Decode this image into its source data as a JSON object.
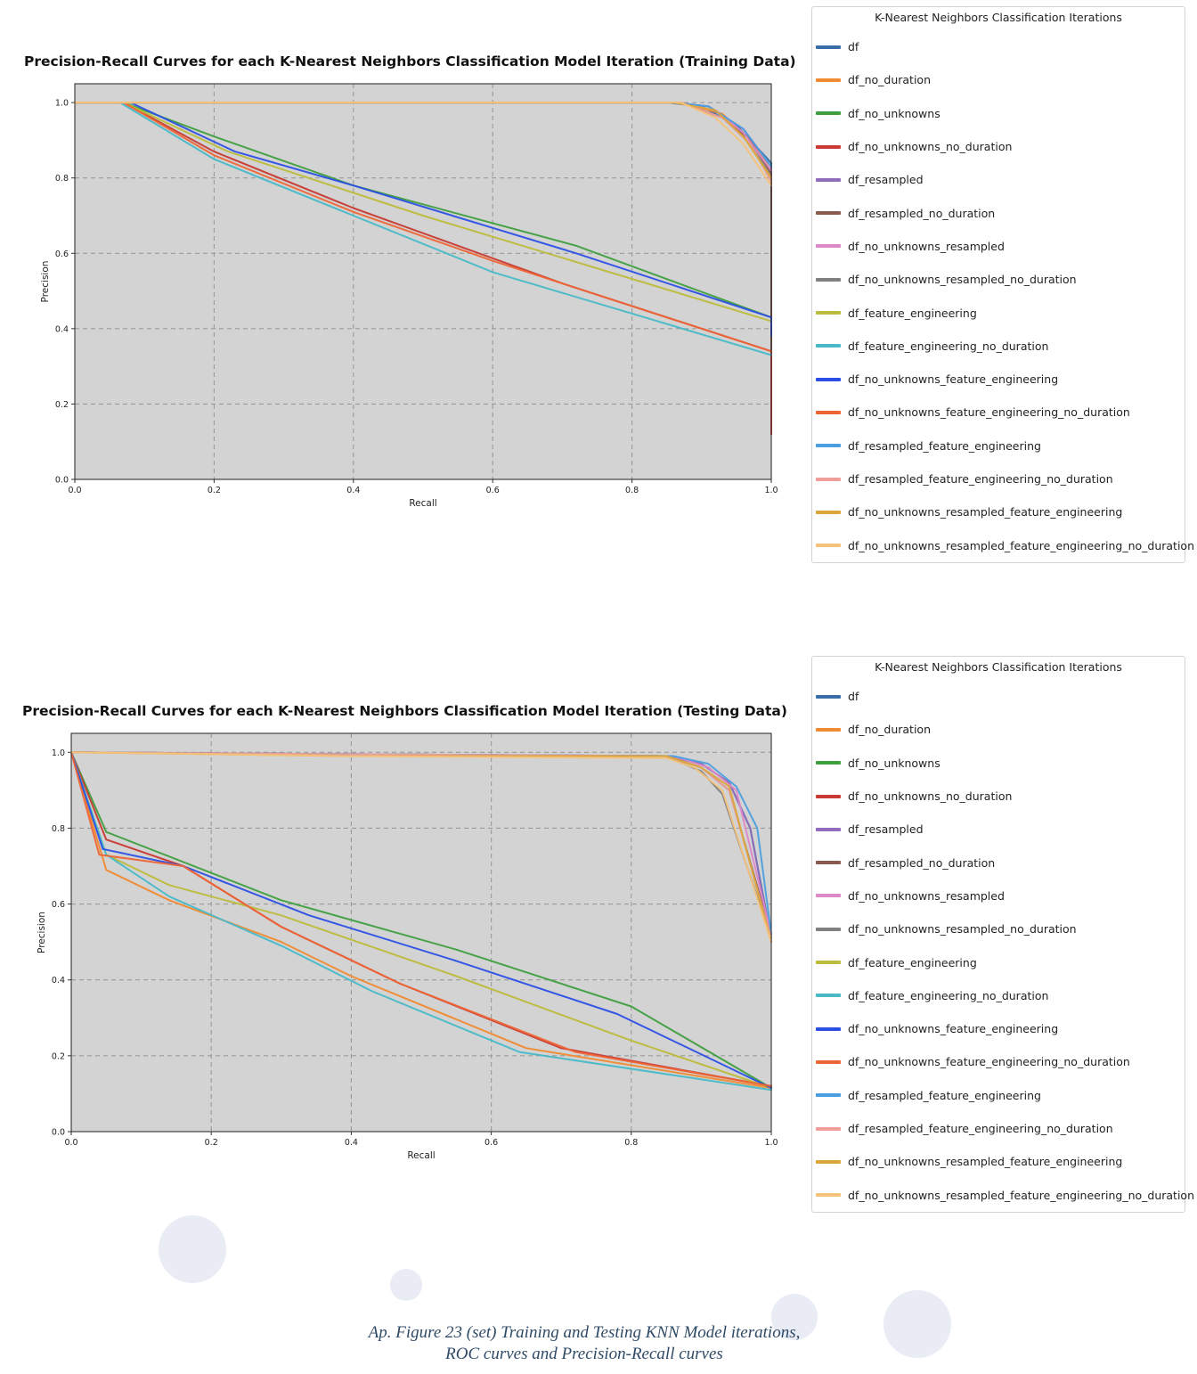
{
  "caption": {
    "line1": "Ap. Figure 23 (set) Training and Testing KNN Model iterations,",
    "line2": "ROC curves and Precision-Recall curves"
  },
  "legend_title": "K-Nearest Neighbors Classification Iterations",
  "series_styles": [
    {
      "name": "df",
      "color": "#3a6ea8"
    },
    {
      "name": "df_no_duration",
      "color": "#f08a30"
    },
    {
      "name": "df_no_unknowns",
      "color": "#3f9f3f"
    },
    {
      "name": "df_no_unknowns_no_duration",
      "color": "#c83a32"
    },
    {
      "name": "df_resampled",
      "color": "#8f6cbc"
    },
    {
      "name": "df_resampled_no_duration",
      "color": "#8a5a4e"
    },
    {
      "name": "df_no_unknowns_resampled",
      "color": "#dd88c7"
    },
    {
      "name": "df_no_unknowns_resampled_no_duration",
      "color": "#808080"
    },
    {
      "name": "df_feature_engineering",
      "color": "#bcbc3c"
    },
    {
      "name": "df_feature_engineering_no_duration",
      "color": "#48b9c8"
    },
    {
      "name": "df_no_unknowns_feature_engineering",
      "color": "#2b4fe6"
    },
    {
      "name": "df_no_unknowns_feature_engineering_no_duration",
      "color": "#ee6535"
    },
    {
      "name": "df_resampled_feature_engineering",
      "color": "#4b9fe0"
    },
    {
      "name": "df_resampled_feature_engineering_no_duration",
      "color": "#ef9e9a"
    },
    {
      "name": "df_no_unknowns_resampled_feature_engineering",
      "color": "#daa63a"
    },
    {
      "name": "df_no_unknowns_resampled_feature_engineering_no_duration",
      "color": "#f5c27a"
    }
  ],
  "chart_data": [
    {
      "type": "line",
      "title": "Precision-Recall Curves for each K-Nearest Neighbors Classification Model Iteration (Training Data)",
      "xlabel": "Recall",
      "ylabel": "Precision",
      "xlim": [
        0,
        1
      ],
      "ylim": [
        0,
        1.05
      ],
      "xticks": [
        "0.0",
        "0.2",
        "0.4",
        "0.6",
        "0.8",
        "1.0"
      ],
      "yticks": [
        "0.0",
        "0.2",
        "0.4",
        "0.6",
        "0.8",
        "1.0"
      ],
      "grid": true,
      "legend_position": "outside-right",
      "series": [
        {
          "name": "df",
          "points": [
            [
              0,
              1
            ],
            [
              0.85,
              1
            ],
            [
              0.9,
              0.99
            ],
            [
              0.95,
              0.94
            ],
            [
              0.98,
              0.88
            ],
            [
              1,
              0.84
            ],
            [
              1,
              0.43
            ]
          ]
        },
        {
          "name": "df_no_duration",
          "points": [
            [
              0,
              1
            ],
            [
              0.87,
              1
            ],
            [
              0.93,
              0.97
            ],
            [
              0.97,
              0.9
            ],
            [
              1,
              0.82
            ],
            [
              1,
              0.34
            ]
          ]
        },
        {
          "name": "df_no_unknowns",
          "points": [
            [
              0,
              1
            ],
            [
              0.07,
              1
            ],
            [
              0.2,
              0.91
            ],
            [
              0.4,
              0.78
            ],
            [
              0.72,
              0.62
            ],
            [
              1,
              0.43
            ]
          ]
        },
        {
          "name": "df_no_unknowns_no_duration",
          "points": [
            [
              0,
              1
            ],
            [
              0.07,
              1
            ],
            [
              0.2,
              0.87
            ],
            [
              0.4,
              0.72
            ],
            [
              0.7,
              0.52
            ],
            [
              1,
              0.34
            ],
            [
              1,
              0.12
            ]
          ]
        },
        {
          "name": "df_resampled",
          "points": [
            [
              0,
              1
            ],
            [
              0.86,
              1
            ],
            [
              0.91,
              0.99
            ],
            [
              0.96,
              0.93
            ],
            [
              1,
              0.83
            ],
            [
              1,
              0.43
            ]
          ]
        },
        {
          "name": "df_resampled_no_duration",
          "points": [
            [
              0,
              1
            ],
            [
              0.87,
              1
            ],
            [
              0.93,
              0.96
            ],
            [
              0.97,
              0.9
            ],
            [
              1,
              0.81
            ],
            [
              1,
              0.34
            ]
          ]
        },
        {
          "name": "df_no_unknowns_resampled",
          "points": [
            [
              0,
              1
            ],
            [
              0.86,
              1
            ],
            [
              0.92,
              0.98
            ],
            [
              0.96,
              0.92
            ],
            [
              1,
              0.82
            ]
          ]
        },
        {
          "name": "df_no_unknowns_resampled_no_duration",
          "points": [
            [
              0,
              1
            ],
            [
              0.87,
              1
            ],
            [
              0.93,
              0.96
            ],
            [
              0.97,
              0.89
            ],
            [
              1,
              0.8
            ]
          ]
        },
        {
          "name": "df_feature_engineering",
          "points": [
            [
              0,
              1
            ],
            [
              0.07,
              1
            ],
            [
              0.22,
              0.87
            ],
            [
              0.5,
              0.7
            ],
            [
              1,
              0.42
            ]
          ]
        },
        {
          "name": "df_feature_engineering_no_duration",
          "points": [
            [
              0,
              1
            ],
            [
              0.065,
              1
            ],
            [
              0.2,
              0.85
            ],
            [
              0.4,
              0.7
            ],
            [
              0.6,
              0.55
            ],
            [
              1,
              0.33
            ]
          ]
        },
        {
          "name": "df_no_unknowns_feature_engineering",
          "points": [
            [
              0,
              1
            ],
            [
              0.08,
              1
            ],
            [
              0.23,
              0.87
            ],
            [
              0.4,
              0.78
            ],
            [
              0.72,
              0.6
            ],
            [
              1,
              0.43
            ],
            [
              1,
              0.38
            ]
          ]
        },
        {
          "name": "df_no_unknowns_feature_engineering_no_duration",
          "points": [
            [
              0,
              1
            ],
            [
              0.07,
              1
            ],
            [
              0.2,
              0.86
            ],
            [
              0.4,
              0.71
            ],
            [
              0.6,
              0.58
            ],
            [
              1,
              0.34
            ]
          ]
        },
        {
          "name": "df_resampled_feature_engineering",
          "points": [
            [
              0,
              1
            ],
            [
              0.86,
              1
            ],
            [
              0.91,
              0.99
            ],
            [
              0.96,
              0.93
            ],
            [
              1,
              0.83
            ]
          ]
        },
        {
          "name": "df_resampled_feature_engineering_no_duration",
          "points": [
            [
              0,
              1
            ],
            [
              0.87,
              1
            ],
            [
              0.93,
              0.96
            ],
            [
              0.97,
              0.89
            ],
            [
              1,
              0.79
            ]
          ]
        },
        {
          "name": "df_no_unknowns_resampled_feature_engineering",
          "points": [
            [
              0,
              1
            ],
            [
              0.86,
              1
            ],
            [
              0.92,
              0.98
            ],
            [
              0.96,
              0.91
            ],
            [
              1,
              0.8
            ]
          ]
        },
        {
          "name": "df_no_unknowns_resampled_feature_engineering_no_duration",
          "points": [
            [
              0,
              1
            ],
            [
              0.87,
              1
            ],
            [
              0.92,
              0.96
            ],
            [
              0.96,
              0.89
            ],
            [
              1,
              0.78
            ]
          ]
        }
      ]
    },
    {
      "type": "line",
      "title": "Precision-Recall Curves for each K-Nearest Neighbors Classification Model Iteration (Testing Data)",
      "xlabel": "Recall",
      "ylabel": "Precision",
      "xlim": [
        0,
        1
      ],
      "ylim": [
        0,
        1.05
      ],
      "xticks": [
        "0.0",
        "0.2",
        "0.4",
        "0.6",
        "0.8",
        "1.0"
      ],
      "yticks": [
        "0.0",
        "0.2",
        "0.4",
        "0.6",
        "0.8",
        "1.0"
      ],
      "grid": true,
      "legend_position": "outside-right",
      "series": [
        {
          "name": "df",
          "points": [
            [
              0,
              1
            ],
            [
              0.4,
              0.995
            ],
            [
              0.85,
              0.99
            ],
            [
              0.9,
              0.97
            ],
            [
              0.94,
              0.92
            ],
            [
              0.97,
              0.8
            ],
            [
              1,
              0.51
            ]
          ]
        },
        {
          "name": "df_no_duration",
          "points": [
            [
              0,
              1
            ],
            [
              0.05,
              0.69
            ],
            [
              0.14,
              0.61
            ],
            [
              0.3,
              0.5
            ],
            [
              0.4,
              0.41
            ],
            [
              0.65,
              0.22
            ],
            [
              1,
              0.115
            ]
          ]
        },
        {
          "name": "df_no_unknowns",
          "points": [
            [
              0,
              1
            ],
            [
              0.05,
              0.79
            ],
            [
              0.3,
              0.61
            ],
            [
              0.55,
              0.48
            ],
            [
              0.8,
              0.33
            ],
            [
              1,
              0.115
            ]
          ]
        },
        {
          "name": "df_no_unknowns_no_duration",
          "points": [
            [
              0,
              1
            ],
            [
              0.05,
              0.77
            ],
            [
              0.16,
              0.7
            ],
            [
              0.3,
              0.54
            ],
            [
              0.47,
              0.39
            ],
            [
              0.7,
              0.22
            ],
            [
              1,
              0.12
            ]
          ]
        },
        {
          "name": "df_resampled",
          "points": [
            [
              0,
              1
            ],
            [
              0.4,
              0.995
            ],
            [
              0.85,
              0.99
            ],
            [
              0.9,
              0.97
            ],
            [
              0.94,
              0.92
            ],
            [
              0.97,
              0.8
            ],
            [
              1,
              0.5
            ]
          ]
        },
        {
          "name": "df_resampled_no_duration",
          "points": [
            [
              0,
              1
            ],
            [
              0.4,
              0.995
            ],
            [
              0.85,
              0.99
            ],
            [
              0.9,
              0.96
            ],
            [
              0.94,
              0.9
            ],
            [
              1,
              0.52
            ]
          ]
        },
        {
          "name": "df_no_unknowns_resampled",
          "points": [
            [
              0,
              1
            ],
            [
              0.4,
              0.995
            ],
            [
              0.86,
              0.99
            ],
            [
              0.91,
              0.96
            ],
            [
              0.95,
              0.9
            ],
            [
              1,
              0.52
            ]
          ]
        },
        {
          "name": "df_no_unknowns_resampled_no_duration",
          "points": [
            [
              0,
              1
            ],
            [
              0.4,
              0.995
            ],
            [
              0.85,
              0.99
            ],
            [
              0.9,
              0.95
            ],
            [
              0.93,
              0.89
            ],
            [
              1,
              0.51
            ]
          ]
        },
        {
          "name": "df_feature_engineering",
          "points": [
            [
              0,
              1
            ],
            [
              0.05,
              0.73
            ],
            [
              0.14,
              0.65
            ],
            [
              0.3,
              0.57
            ],
            [
              0.55,
              0.41
            ],
            [
              0.8,
              0.24
            ],
            [
              1,
              0.115
            ]
          ]
        },
        {
          "name": "df_feature_engineering_no_duration",
          "points": [
            [
              0,
              1
            ],
            [
              0.05,
              0.73
            ],
            [
              0.14,
              0.62
            ],
            [
              0.3,
              0.49
            ],
            [
              0.43,
              0.37
            ],
            [
              0.64,
              0.21
            ],
            [
              1,
              0.11
            ]
          ]
        },
        {
          "name": "df_no_unknowns_feature_engineering",
          "points": [
            [
              0,
              1
            ],
            [
              0.045,
              0.745
            ],
            [
              0.16,
              0.7
            ],
            [
              0.34,
              0.57
            ],
            [
              0.55,
              0.45
            ],
            [
              0.78,
              0.31
            ],
            [
              1,
              0.115
            ]
          ]
        },
        {
          "name": "df_no_unknowns_feature_engineering_no_duration",
          "points": [
            [
              0,
              1
            ],
            [
              0.04,
              0.73
            ],
            [
              0.16,
              0.7
            ],
            [
              0.3,
              0.54
            ],
            [
              0.47,
              0.39
            ],
            [
              0.72,
              0.21
            ],
            [
              1,
              0.12
            ]
          ]
        },
        {
          "name": "df_resampled_feature_engineering",
          "points": [
            [
              0,
              1
            ],
            [
              0.4,
              0.995
            ],
            [
              0.86,
              0.99
            ],
            [
              0.91,
              0.97
            ],
            [
              0.95,
              0.91
            ],
            [
              0.98,
              0.8
            ],
            [
              1,
              0.52
            ]
          ]
        },
        {
          "name": "df_resampled_feature_engineering_no_duration",
          "points": [
            [
              0,
              1
            ],
            [
              0.4,
              0.995
            ],
            [
              0.85,
              0.99
            ],
            [
              0.9,
              0.96
            ],
            [
              0.94,
              0.9
            ],
            [
              1,
              0.51
            ]
          ]
        },
        {
          "name": "df_no_unknowns_resampled_feature_engineering",
          "points": [
            [
              0,
              1
            ],
            [
              0.4,
              0.99
            ],
            [
              0.85,
              0.99
            ],
            [
              0.9,
              0.96
            ],
            [
              0.94,
              0.91
            ],
            [
              1,
              0.5
            ]
          ]
        },
        {
          "name": "df_no_unknowns_resampled_feature_engineering_no_duration",
          "points": [
            [
              0,
              1
            ],
            [
              0.4,
              0.99
            ],
            [
              0.85,
              0.985
            ],
            [
              0.89,
              0.96
            ],
            [
              0.93,
              0.9
            ],
            [
              1,
              0.5
            ]
          ]
        }
      ]
    }
  ]
}
